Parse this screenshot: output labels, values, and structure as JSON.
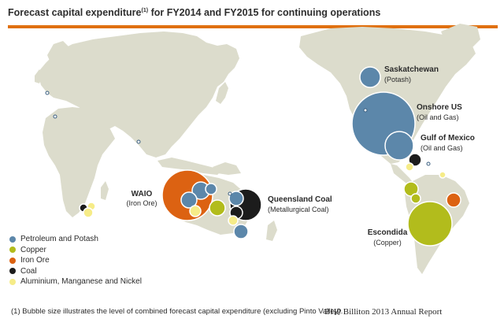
{
  "title": {
    "text": "Forecast capital expenditure",
    "note_marker": "(1)",
    "text_after": "for FY2014 and FY2015 for continuing operations"
  },
  "colors": {
    "rule": "#e0700f",
    "land": "#dcdccc",
    "petroleum": "#5c87aa",
    "copper": "#b2bc1c",
    "iron_ore": "#dc6212",
    "coal": "#1c1c1c",
    "aluminium": "#f6ec88"
  },
  "labels": {
    "saskatchewan": {
      "name": "Saskatchewan",
      "sub": "(Potash)"
    },
    "onshore_us": {
      "name": "Onshore US",
      "sub": "(Oil and Gas)"
    },
    "gulf_of_mexico": {
      "name": "Gulf of Mexico",
      "sub": "(Oil and Gas)"
    },
    "waio": {
      "name": "WAIO",
      "sub": "(Iron Ore)"
    },
    "queensland_coal": {
      "name": "Queensland Coal",
      "sub": "(Metallurgical Coal)"
    },
    "escondida": {
      "name": "Escondida",
      "sub": "(Copper)"
    }
  },
  "legend": [
    {
      "label": "Petroleum and Potash",
      "color": "#5c87aa",
      "icon": "legend-dot-petroleum-icon"
    },
    {
      "label": "Copper",
      "color": "#b2bc1c",
      "icon": "legend-dot-copper-icon"
    },
    {
      "label": "Iron Ore",
      "color": "#dc6212",
      "icon": "legend-dot-iron-ore-icon"
    },
    {
      "label": "Coal",
      "color": "#1c1c1c",
      "icon": "legend-dot-coal-icon"
    },
    {
      "label": "Aluminium, Manganese and Nickel",
      "color": "#f6ec88",
      "icon": "legend-dot-aluminium-icon"
    }
  ],
  "footnote": {
    "marker": "(1)",
    "text": "Bubble size illustrates the level of combined forecast capital expenditure (excluding Pinto Valley)."
  },
  "source": "BHP Billiton 2013 Annual Report"
}
